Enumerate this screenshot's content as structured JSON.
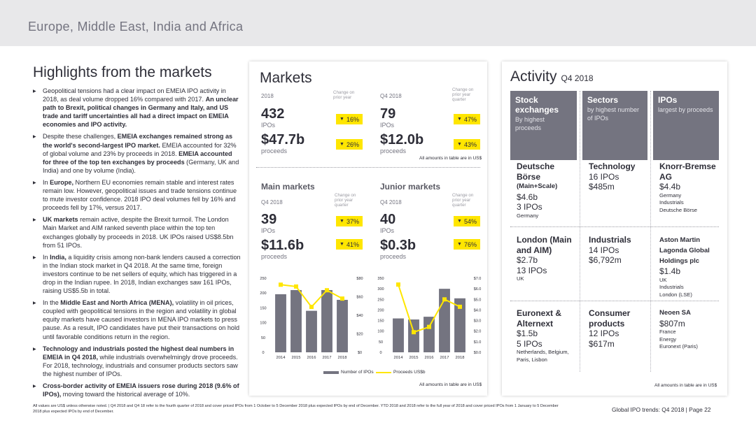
{
  "header": {
    "title": "Europe, Middle East, India and Africa"
  },
  "highlights": {
    "title": "Highlights from the markets",
    "bullets": [
      [
        {
          "t": "Geopolitical tensions had a clear impact on EMEIA IPO activity in 2018, as deal volume dropped 16% compared with 2017. ",
          "b": false
        },
        {
          "t": "An unclear path to Brexit, political changes in Germany and Italy, and US trade and tariff uncertainties all had a direct impact on EMEIA economies and IPO activity.",
          "b": true
        }
      ],
      [
        {
          "t": "Despite these challenges, ",
          "b": false
        },
        {
          "t": "EMEIA exchanges remained strong as the world's second-largest IPO market.",
          "b": true
        },
        {
          "t": " EMEIA accounted for 32% of global volume and 23% by proceeds in 2018. ",
          "b": false
        },
        {
          "t": "EMEIA accounted for three of the top ten exchanges by proceeds",
          "b": true
        },
        {
          "t": " (Germany, UK and India) and one by volume (India).",
          "b": false
        }
      ],
      [
        {
          "t": "In ",
          "b": false
        },
        {
          "t": "Europe,",
          "b": true
        },
        {
          "t": " Northern EU economies remain stable and interest rates remain low. However, geopolitical issues and trade tensions continue to mute investor confidence. 2018 IPO deal volumes fell by 16% and proceeds fell by 17%, versus 2017.",
          "b": false
        }
      ],
      [
        {
          "t": "UK markets",
          "b": true
        },
        {
          "t": " remain active, despite the Brexit turmoil. The London Main Market and AIM ranked seventh place within the top ten exchanges globally by proceeds in 2018. UK IPOs raised US$8.5bn from 51 IPOs.",
          "b": false
        }
      ],
      [
        {
          "t": "In ",
          "b": false
        },
        {
          "t": "India,",
          "b": true
        },
        {
          "t": " a liquidity crisis among non-bank lenders caused a correction in the Indian stock market in Q4 2018. At the same time, foreign investors continue to be net sellers of equity, which has triggered in a drop in the Indian rupee. In 2018, Indian exchanges saw 161 IPOs, raising US$5.5b in total.",
          "b": false
        }
      ],
      [
        {
          "t": "In the ",
          "b": false
        },
        {
          "t": "Middle East and North Africa (MENA),",
          "b": true
        },
        {
          "t": " volatility in oil prices, coupled with geopolitical tensions in the region and volatility in global equity markets have caused investors in MENA IPO markets to press pause. As a result, IPO candidates have put their transactions on hold until favorable conditions return in the region.",
          "b": false
        }
      ],
      [
        {
          "t": "Technology and industrials posted the highest deal numbers in EMEIA in Q4 2018,",
          "b": true
        },
        {
          "t": " while industrials overwhelmingly drove proceeds. For 2018, technology, industrials and consumer products sectors saw the highest number of IPOs.",
          "b": false
        }
      ],
      [
        {
          "t": "Cross-border activity of EMEIA issuers rose during 2018 (9.6% of IPOs),",
          "b": true
        },
        {
          "t": " moving toward the historical average of 10%.",
          "b": false
        }
      ]
    ]
  },
  "markets": {
    "title": "Markets",
    "change_prior_year": "Change on prior year",
    "change_prior_quarter": "Change on prior year quarter",
    "y2018": {
      "period": "2018",
      "ipos": "432",
      "ipos_unit": "IPOs",
      "ipos_chg": "16%",
      "proceeds": "$47.7b",
      "proceeds_unit": "proceeds",
      "proceeds_chg": "26%"
    },
    "q42018": {
      "period": "Q4 2018",
      "ipos": "79",
      "ipos_unit": "IPOs",
      "ipos_chg": "47%",
      "proceeds": "$12.0b",
      "proceeds_unit": "proceeds",
      "proceeds_chg": "43%"
    },
    "usd_note": "All amounts in table are in US$",
    "main": {
      "title": "Main markets",
      "period": "Q4 2018",
      "chg_label": "Change on prior year quarter",
      "ipos": "39",
      "ipos_unit": "IPOs",
      "ipos_chg": "37%",
      "proceeds": "$11.6b",
      "proceeds_unit": "proceeds",
      "proceeds_chg": "41%"
    },
    "junior": {
      "title": "Junior markets",
      "period": "Q4 2018",
      "chg_label": "Change on prior year quarter",
      "ipos": "40",
      "ipos_unit": "IPOs",
      "ipos_chg": "54%",
      "proceeds": "$0.3b",
      "proceeds_unit": "proceeds",
      "proceeds_chg": "76%"
    },
    "legend": {
      "ipos": "Number of IPOs",
      "proceeds": "Proceeds US$b"
    },
    "usd_note2": "All amounts in table are in US$",
    "down_arrow": "▼"
  },
  "chart_data": [
    {
      "type": "bar",
      "categories": [
        "2014",
        "2015",
        "2016",
        "2017",
        "2018"
      ],
      "series": [
        {
          "name": "Number of IPOs",
          "values": [
            196,
            210,
            140,
            210,
            177
          ]
        },
        {
          "name": "Proceeds US$b",
          "values": [
            73,
            71,
            49,
            67,
            58
          ]
        }
      ],
      "ylim": [
        0,
        250
      ],
      "y2lim": [
        0,
        80
      ],
      "yticks": [
        "250",
        "200",
        "150",
        "100",
        "50",
        "0"
      ],
      "y2ticks": [
        "$80",
        "$60",
        "$40",
        "$20",
        "$0"
      ]
    },
    {
      "type": "bar",
      "categories": [
        "2014",
        "2015",
        "2016",
        "2017",
        "2018"
      ],
      "series": [
        {
          "name": "Number of IPOs",
          "values": [
            160,
            155,
            168,
            300,
            255
          ]
        },
        {
          "name": "Proceeds US$b",
          "values": [
            6.4,
            1.9,
            2.4,
            5.0,
            4.3
          ]
        }
      ],
      "ylim": [
        0,
        350
      ],
      "y2lim": [
        0,
        7
      ],
      "yticks": [
        "350",
        "300",
        "250",
        "200",
        "150",
        "100",
        "50",
        "0"
      ],
      "y2ticks": [
        "$7.0",
        "$6.0",
        "$5.0",
        "$4.0",
        "$3.0",
        "$2.0",
        "$1.0",
        "$0.0"
      ]
    }
  ],
  "activity": {
    "title": "Activity",
    "period": "Q4 2018",
    "cols": [
      {
        "head": "Stock exchanges",
        "sub": "By highest proceeds"
      },
      {
        "head": "Sectors",
        "sub": "by highest number of IPOs"
      },
      {
        "head": "IPOs",
        "sub": "largest by proceeds"
      }
    ],
    "rows": [
      [
        {
          "name": "Deutsche Börse",
          "sub": "(Main+Scale)",
          "v1": "$4.6b",
          "v2": "3 IPOs",
          "x": "Germany"
        },
        {
          "name": "Technology",
          "v1": "16 IPOs",
          "v2": "$485m"
        },
        {
          "name": "Knorr-Bremse AG",
          "v1": "$4.4b",
          "x": "Germany",
          "x2": "Industrials",
          "x3": "Deutsche Börse"
        }
      ],
      [
        {
          "name": "London (Main and AIM)",
          "v1": "$2.7b",
          "v2": "13 IPOs",
          "x": "UK"
        },
        {
          "name": "Industrials",
          "v1": "14 IPOs",
          "v2": "$6,792m"
        },
        {
          "name": "Aston Martin Lagonda Global Holdings plc",
          "v1": "$1.4b",
          "x": "UK",
          "x2": "Industrials",
          "x3": "London (LSE)"
        }
      ],
      [
        {
          "name": "Euronext & Alternext",
          "v1": "$1.5b",
          "v2": "5 IPOs",
          "x": "Netherlands, Belgium, Paris, Lisbon"
        },
        {
          "name": "Consumer products",
          "v1": "12 IPOs",
          "v2": "$617m"
        },
        {
          "name": "Neoen SA",
          "v1": "$807m",
          "x": "France",
          "x2": "Energy",
          "x3": "Euronext (Paris)"
        }
      ]
    ],
    "usd_note": "All amounts in table are in US$"
  },
  "footer": {
    "note": "All values are US$ unless otherwise noted. | Q4 2018 and Q4 18 refer to the fourth quarter of 2018 and cover priced IPOs from 1 October to 5 December 2018 plus expected IPOs by end of December. YTD 2018 and 2018 refer to the full year of 2018 and cover priced IPOs from 1 January to 5 December 2018 plus expected IPOs by end of December.",
    "right": "Global IPO trends: Q4 2018  |  Page 22"
  },
  "colors": {
    "accent": "#ffe600",
    "bar": "#747480",
    "dark": "#2e2e38",
    "panel_head": "#747480"
  }
}
